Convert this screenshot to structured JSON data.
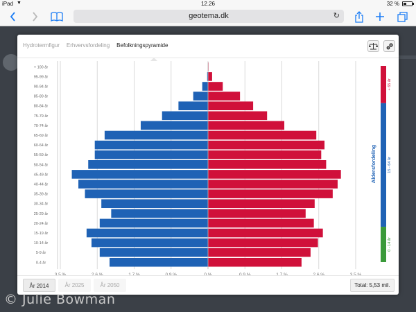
{
  "status_bar": {
    "device": "iPad",
    "time": "12.26",
    "battery": "32 %",
    "battery_level": 0.32
  },
  "browser": {
    "url": "geotema.dk"
  },
  "modal": {
    "tabs": [
      {
        "label": "Hydrotermfigur",
        "active": false
      },
      {
        "label": "Erhvervsfordeling",
        "active": false
      },
      {
        "label": "Befolkningspyramide",
        "active": true
      }
    ],
    "years": [
      {
        "label": "År 2014",
        "active": true
      },
      {
        "label": "År 2025",
        "active": false
      },
      {
        "label": "År 2050",
        "active": false
      }
    ],
    "total": "Total: 5,53 mil."
  },
  "chart_data": {
    "type": "bar",
    "orientation": "horizontal-diverging",
    "categories": [
      "+ 100 år",
      "95-99 år",
      "90-94 år",
      "85-89 år",
      "80-84 år",
      "75-79 år",
      "70-74 år",
      "65-69 år",
      "60-64 år",
      "55-59 år",
      "50-54 år",
      "45-49 år",
      "40-44 år",
      "35-39 år",
      "30-34 år",
      "25-29 år",
      "20-24 år",
      "15-19 år",
      "10-14 år",
      "5-9 år",
      "0-4 år"
    ],
    "series": [
      {
        "side": "left",
        "color": "#1f62b5",
        "values": [
          0.0,
          0.05,
          0.35,
          0.9,
          1.8,
          2.8,
          4.1,
          6.3,
          6.9,
          6.9,
          7.3,
          8.3,
          7.9,
          7.5,
          6.5,
          5.9,
          6.6,
          7.4,
          7.1,
          6.6,
          6.0
        ]
      },
      {
        "side": "right",
        "color": "#d0103a",
        "values": [
          0.03,
          0.25,
          0.9,
          1.95,
          2.75,
          3.6,
          4.65,
          6.6,
          7.1,
          6.9,
          7.2,
          8.1,
          7.9,
          7.6,
          6.5,
          5.95,
          6.45,
          7.0,
          6.7,
          6.25,
          5.7
        ]
      }
    ],
    "x_ticks": [
      "3.5 %",
      "2.6 %",
      "1.7 %",
      "0.9 %",
      "0 %",
      "0.9 %",
      "1.7 %",
      "2.6 %",
      "3.5 %"
    ],
    "grid": true,
    "age_groups": {
      "title": "Aldersfordeling",
      "segments": [
        {
          "label": "+ 65 år",
          "color": "#d0103a",
          "share": 0.19
        },
        {
          "label": "15 - 64 år",
          "color": "#1f62b5",
          "share": 0.63
        },
        {
          "label": "0 - 14 år",
          "color": "#3a9a3a",
          "share": 0.18
        }
      ]
    }
  },
  "watermark": "© Julie Bowman"
}
